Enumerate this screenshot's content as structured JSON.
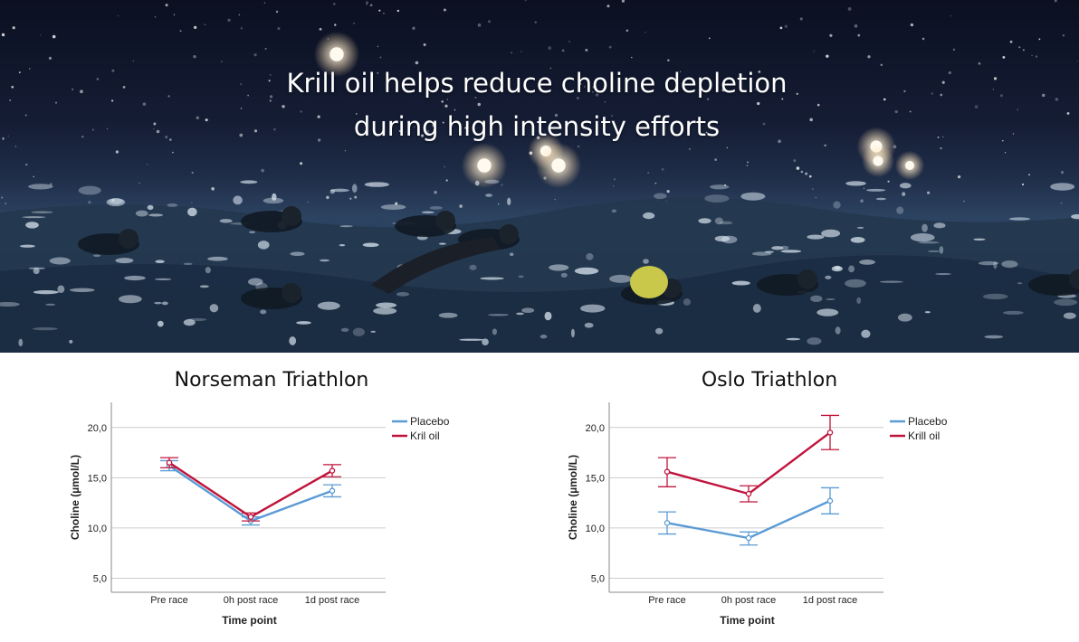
{
  "hero": {
    "headline_line1": "Krill oil helps reduce choline depletion",
    "headline_line2": "during high intensity efforts"
  },
  "colors": {
    "placebo": "#5b9bd5",
    "krill": "#c0143c",
    "grid": "#cccccc"
  },
  "chart_data": [
    {
      "type": "line",
      "title": "Norseman Triathlon",
      "xlabel": "Time point",
      "ylabel": "Choline (µmol/L)",
      "categories": [
        "Pre race",
        "0h post race",
        "1d post race"
      ],
      "yticks": [
        "5,0",
        "10,0",
        "15,0",
        "20,0"
      ],
      "ytick_values": [
        5,
        10,
        15,
        20
      ],
      "ylim": [
        3.6,
        22.5
      ],
      "legend_position": "top-right",
      "series": [
        {
          "name": "Placebo",
          "values": [
            16.2,
            10.7,
            13.7
          ],
          "err_low": [
            15.7,
            10.3,
            13.1
          ],
          "err_high": [
            16.7,
            11.1,
            14.3
          ]
        },
        {
          "name": "Kril oil",
          "values": [
            16.5,
            11.1,
            15.7
          ],
          "err_low": [
            16.0,
            10.7,
            15.1
          ],
          "err_high": [
            17.0,
            11.5,
            16.3
          ]
        }
      ]
    },
    {
      "type": "line",
      "title": "Oslo Triathlon",
      "xlabel": "Time point",
      "ylabel": "Choline (µmol/L)",
      "categories": [
        "Pre race",
        "0h post race",
        "1d post race"
      ],
      "yticks": [
        "5,0",
        "10,0",
        "15,0",
        "20,0"
      ],
      "ytick_values": [
        5,
        10,
        15,
        20
      ],
      "ylim": [
        3.6,
        22.5
      ],
      "legend_position": "top-right",
      "series": [
        {
          "name": "Placebo",
          "values": [
            10.5,
            9.0,
            12.7
          ],
          "err_low": [
            9.4,
            8.3,
            11.4
          ],
          "err_high": [
            11.6,
            9.6,
            14.0
          ]
        },
        {
          "name": "Krill oil",
          "values": [
            15.6,
            13.4,
            19.5
          ],
          "err_low": [
            14.1,
            12.6,
            17.8
          ],
          "err_high": [
            17.0,
            14.2,
            21.2
          ]
        }
      ]
    }
  ]
}
